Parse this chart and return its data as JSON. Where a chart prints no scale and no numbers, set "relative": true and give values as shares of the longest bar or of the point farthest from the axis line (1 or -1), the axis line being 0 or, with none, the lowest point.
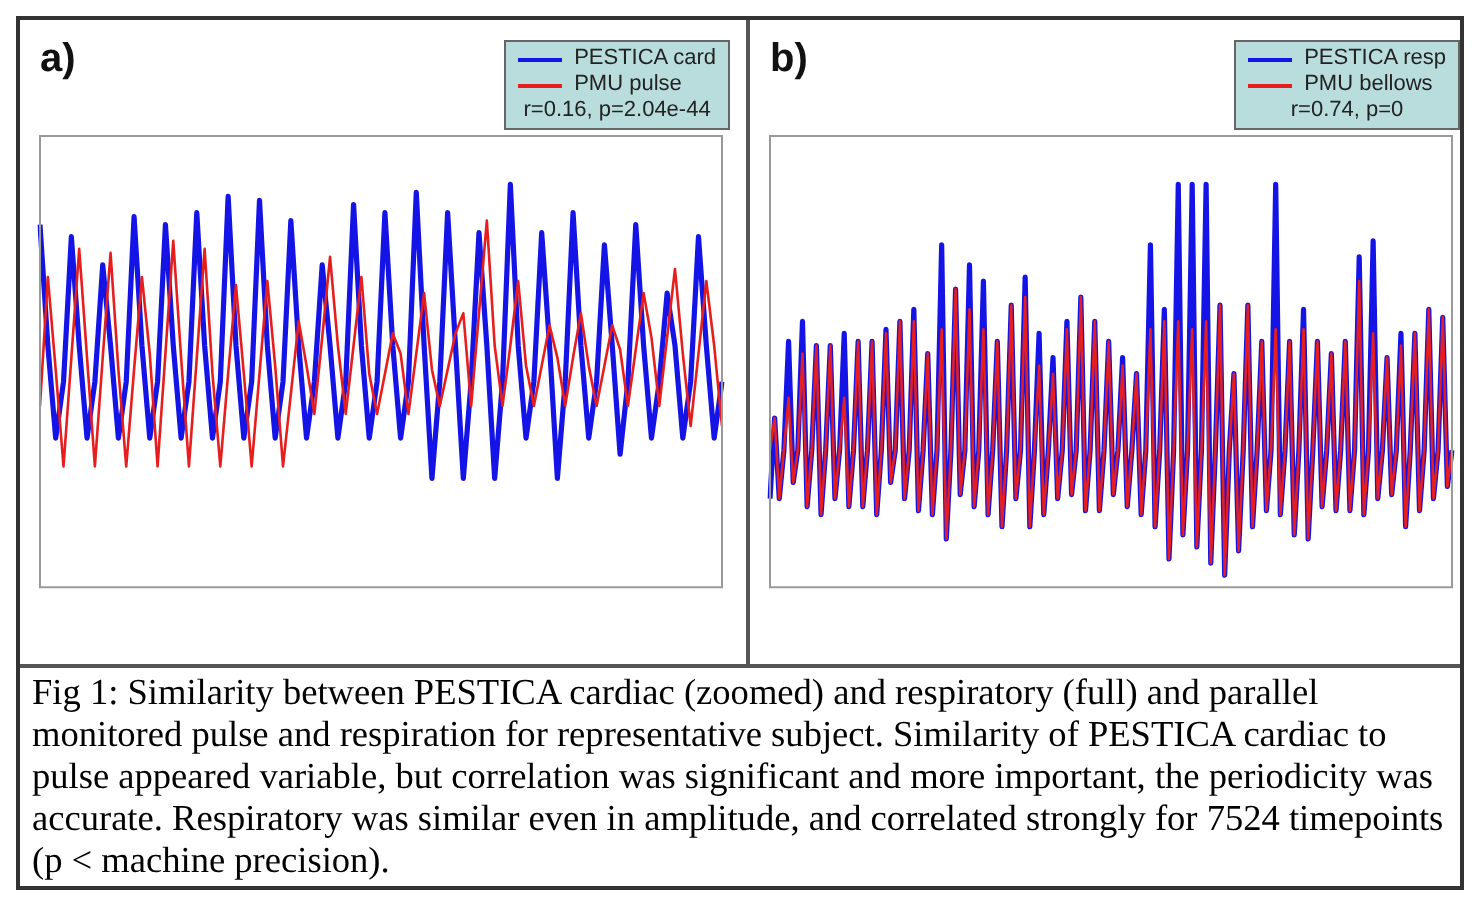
{
  "chart_data": [
    {
      "type": "line",
      "title": "a)",
      "relative": true,
      "legend": "top right",
      "grid": false,
      "marker": "none",
      "line_style": "solid",
      "categories": [
        null,
        null,
        null,
        null,
        null,
        null,
        null,
        null,
        null,
        null,
        null,
        null,
        null,
        null,
        null,
        null,
        null,
        null,
        null,
        null,
        null,
        null,
        null,
        null,
        null,
        null,
        null,
        null,
        null,
        null,
        null,
        null,
        null,
        null,
        null,
        null,
        null,
        null,
        null,
        null,
        null,
        null,
        null,
        null,
        null,
        null,
        null,
        null,
        null,
        null,
        null,
        null,
        null,
        null,
        null,
        null,
        null,
        null,
        null,
        null,
        null,
        null,
        null,
        null,
        null,
        null,
        null,
        null,
        null,
        null,
        null,
        null,
        null,
        null,
        null,
        null,
        null,
        null,
        null,
        null,
        null,
        null,
        null,
        null,
        null,
        null,
        null,
        null
      ],
      "series": [
        {
          "name": "PESTICA card",
          "color": "#1414e6",
          "values": [
            0.9,
            0.6,
            0.37,
            0.51,
            0.87,
            0.6,
            0.37,
            0.51,
            0.8,
            0.6,
            0.37,
            0.51,
            0.92,
            0.6,
            0.37,
            0.51,
            0.9,
            0.6,
            0.37,
            0.51,
            0.93,
            0.6,
            0.37,
            0.51,
            0.97,
            0.6,
            0.37,
            0.51,
            0.96,
            0.6,
            0.37,
            0.51,
            0.91,
            0.6,
            0.37,
            0.51,
            0.8,
            0.6,
            0.37,
            0.51,
            0.95,
            0.6,
            0.37,
            0.51,
            0.93,
            0.6,
            0.37,
            0.51,
            0.98,
            0.6,
            0.27,
            0.51,
            0.93,
            0.6,
            0.27,
            0.51,
            0.88,
            0.6,
            0.27,
            0.51,
            1.0,
            0.6,
            0.37,
            0.51,
            0.88,
            0.6,
            0.27,
            0.51,
            0.93,
            0.6,
            0.37,
            0.51,
            0.85,
            0.6,
            0.33,
            0.51,
            0.9,
            0.6,
            0.37,
            0.51,
            0.73,
            0.6,
            0.37,
            0.51,
            0.87,
            0.6,
            0.37,
            0.51
          ]
        },
        {
          "name": "PMU pulse",
          "color": "#e61e1e",
          "values": [
            0.45,
            0.77,
            0.54,
            0.3,
            0.57,
            0.84,
            0.57,
            0.3,
            0.57,
            0.83,
            0.54,
            0.3,
            0.54,
            0.77,
            0.58,
            0.3,
            0.58,
            0.86,
            0.57,
            0.3,
            0.57,
            0.84,
            0.53,
            0.3,
            0.53,
            0.75,
            0.53,
            0.3,
            0.53,
            0.76,
            0.55,
            0.3,
            0.48,
            0.66,
            0.55,
            0.43,
            0.62,
            0.82,
            0.6,
            0.43,
            0.6,
            0.77,
            0.53,
            0.43,
            0.53,
            0.63,
            0.58,
            0.43,
            0.58,
            0.73,
            0.54,
            0.45,
            0.54,
            0.63,
            0.68,
            0.45,
            0.68,
            0.91,
            0.6,
            0.45,
            0.6,
            0.76,
            0.55,
            0.45,
            0.55,
            0.65,
            0.57,
            0.45,
            0.57,
            0.68,
            0.55,
            0.45,
            0.55,
            0.65,
            0.59,
            0.45,
            0.59,
            0.73,
            0.62,
            0.45,
            0.62,
            0.79,
            0.58,
            0.4,
            0.58,
            0.76,
            0.6,
            0.4
          ]
        }
      ],
      "annotations": [
        "r=0.16, p=2.04e-44",
        "Fig 1: Similarity between PESTICA cardiac (zoomed) and respiratory (full) and parallel monitored pulse and respiration for representative subject. Similarity of PESTICA cardiac to pulse appeared variable, but correlation was significant and more important, the periodicity was accurate. Respiratory was similar even in amplitude, and correlated strongly for 7524 timepoints (p < machine precision)."
      ]
    },
    {
      "type": "line",
      "title": "b)",
      "relative": true,
      "legend": "top right",
      "grid": false,
      "marker": "none",
      "line_style": "solid",
      "categories": [
        null,
        null,
        null,
        null,
        null,
        null,
        null,
        null,
        null,
        null,
        null,
        null,
        null,
        null,
        null,
        null,
        null,
        null,
        null,
        null,
        null,
        null,
        null,
        null,
        null,
        null,
        null,
        null,
        null,
        null,
        null,
        null,
        null,
        null,
        null,
        null,
        null,
        null,
        null,
        null,
        null,
        null,
        null,
        null,
        null,
        null,
        null,
        null,
        null,
        null,
        null,
        null,
        null,
        null,
        null,
        null,
        null,
        null,
        null,
        null,
        null,
        null,
        null,
        null,
        null,
        null,
        null,
        null,
        null,
        null,
        null,
        null,
        null,
        null,
        null,
        null,
        null,
        null,
        null,
        null,
        null,
        null,
        null,
        null,
        null,
        null,
        null,
        null,
        null,
        null,
        null,
        null,
        null,
        null,
        null,
        null,
        null,
        null,
        null,
        null,
        null,
        null,
        null,
        null,
        null,
        null,
        null,
        null,
        null,
        null,
        null,
        null,
        null,
        null,
        null,
        null,
        null,
        null,
        null,
        null,
        null,
        null,
        null,
        null,
        null,
        null,
        null,
        null,
        null,
        null,
        null,
        null,
        null,
        null,
        null,
        null,
        null,
        null,
        null,
        null,
        null,
        null,
        null,
        null,
        null,
        null,
        null,
        null
      ],
      "series": [
        {
          "name": "PESTICA resp",
          "color": "#1414e6",
          "values": [
            0.22,
            0.42,
            0.22,
            0.34,
            0.61,
            0.26,
            0.34,
            0.66,
            0.2,
            0.34,
            0.6,
            0.18,
            0.34,
            0.6,
            0.22,
            0.34,
            0.63,
            0.2,
            0.34,
            0.61,
            0.2,
            0.34,
            0.61,
            0.18,
            0.34,
            0.64,
            0.26,
            0.34,
            0.66,
            0.22,
            0.34,
            0.69,
            0.19,
            0.34,
            0.58,
            0.18,
            0.34,
            0.85,
            0.12,
            0.34,
            0.74,
            0.23,
            0.34,
            0.8,
            0.2,
            0.34,
            0.76,
            0.18,
            0.34,
            0.61,
            0.15,
            0.34,
            0.7,
            0.22,
            0.34,
            0.77,
            0.15,
            0.34,
            0.63,
            0.18,
            0.34,
            0.57,
            0.22,
            0.34,
            0.66,
            0.23,
            0.34,
            0.72,
            0.19,
            0.34,
            0.66,
            0.19,
            0.34,
            0.61,
            0.23,
            0.34,
            0.57,
            0.2,
            0.34,
            0.53,
            0.18,
            0.34,
            0.85,
            0.15,
            0.34,
            0.69,
            0.07,
            0.34,
            1.0,
            0.13,
            0.34,
            1.0,
            0.1,
            0.34,
            1.0,
            0.06,
            0.34,
            0.7,
            0.03,
            0.34,
            0.53,
            0.09,
            0.34,
            0.7,
            0.15,
            0.34,
            0.61,
            0.19,
            0.34,
            1.0,
            0.18,
            0.34,
            0.61,
            0.13,
            0.34,
            0.69,
            0.12,
            0.34,
            0.61,
            0.2,
            0.34,
            0.58,
            0.19,
            0.34,
            0.61,
            0.19,
            0.34,
            0.82,
            0.18,
            0.34,
            0.86,
            0.22,
            0.34,
            0.57,
            0.23,
            0.34,
            0.63,
            0.15,
            0.34,
            0.63,
            0.19,
            0.34,
            0.69,
            0.22,
            0.34,
            0.67,
            0.25,
            0.34
          ]
        },
        {
          "name": "PMU bellows",
          "color": "#e61e1e",
          "values": [
            0.34,
            0.42,
            0.22,
            0.34,
            0.47,
            0.26,
            0.34,
            0.58,
            0.2,
            0.34,
            0.6,
            0.18,
            0.34,
            0.6,
            0.22,
            0.34,
            0.47,
            0.2,
            0.34,
            0.61,
            0.2,
            0.34,
            0.61,
            0.18,
            0.34,
            0.63,
            0.26,
            0.34,
            0.66,
            0.22,
            0.34,
            0.66,
            0.19,
            0.34,
            0.58,
            0.18,
            0.34,
            0.64,
            0.12,
            0.34,
            0.74,
            0.23,
            0.34,
            0.69,
            0.2,
            0.34,
            0.64,
            0.18,
            0.34,
            0.61,
            0.15,
            0.34,
            0.7,
            0.22,
            0.34,
            0.72,
            0.15,
            0.34,
            0.55,
            0.18,
            0.34,
            0.53,
            0.22,
            0.34,
            0.64,
            0.23,
            0.34,
            0.72,
            0.19,
            0.34,
            0.66,
            0.19,
            0.34,
            0.61,
            0.23,
            0.34,
            0.55,
            0.2,
            0.34,
            0.53,
            0.18,
            0.34,
            0.64,
            0.15,
            0.34,
            0.66,
            0.07,
            0.34,
            0.66,
            0.13,
            0.34,
            0.64,
            0.1,
            0.34,
            0.66,
            0.06,
            0.34,
            0.7,
            0.03,
            0.34,
            0.53,
            0.09,
            0.34,
            0.7,
            0.15,
            0.34,
            0.61,
            0.19,
            0.34,
            0.64,
            0.18,
            0.34,
            0.61,
            0.13,
            0.34,
            0.64,
            0.12,
            0.34,
            0.61,
            0.2,
            0.34,
            0.58,
            0.19,
            0.34,
            0.61,
            0.19,
            0.34,
            0.76,
            0.18,
            0.34,
            0.63,
            0.22,
            0.34,
            0.57,
            0.23,
            0.34,
            0.6,
            0.15,
            0.34,
            0.63,
            0.19,
            0.34,
            0.69,
            0.22,
            0.34,
            0.67,
            0.25,
            0.34
          ]
        }
      ],
      "annotations": [
        "r=0.74, p=0"
      ]
    }
  ]
}
